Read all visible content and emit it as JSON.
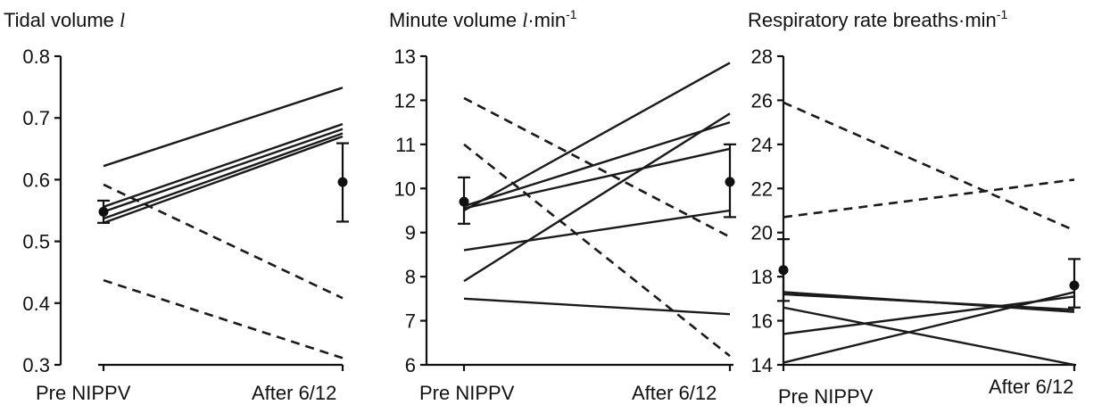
{
  "chart_data": [
    {
      "type": "line",
      "title": "Tidal volume",
      "title_unit": "l",
      "title_sup": "",
      "categories": [
        "Pre NIPPV",
        "After 6/12"
      ],
      "yticks": [
        "0.3",
        "0.4",
        "0.5",
        "0.6",
        "0.7",
        "0.8"
      ],
      "ylim": [
        0.3,
        0.8
      ],
      "series": [
        {
          "style": "solid",
          "values": [
            0.622,
            0.749
          ]
        },
        {
          "style": "solid",
          "values": [
            0.556,
            0.69
          ]
        },
        {
          "style": "solid",
          "values": [
            0.548,
            0.682
          ]
        },
        {
          "style": "solid",
          "values": [
            0.537,
            0.675
          ]
        },
        {
          "style": "solid",
          "values": [
            0.53,
            0.67
          ]
        },
        {
          "style": "dashed",
          "values": [
            0.592,
            0.408
          ]
        },
        {
          "style": "dashed",
          "values": [
            0.437,
            0.311
          ]
        }
      ],
      "mean_sd": [
        {
          "mean": 0.548,
          "low": 0.53,
          "high": 0.566
        },
        {
          "mean": 0.596,
          "low": 0.532,
          "high": 0.659
        }
      ]
    },
    {
      "type": "line",
      "title": "Minute volume",
      "title_unit": "l",
      "title_sup": "-1",
      "title_unit_suffix": "·min",
      "categories": [
        "Pre NIPPV",
        "After 6/12"
      ],
      "yticks": [
        "6",
        "7",
        "8",
        "9",
        "10",
        "11",
        "12",
        "13"
      ],
      "ylim": [
        6,
        13
      ],
      "series": [
        {
          "style": "solid",
          "values": [
            9.5,
            12.85
          ]
        },
        {
          "style": "solid",
          "values": [
            9.6,
            11.5
          ]
        },
        {
          "style": "solid",
          "values": [
            9.55,
            10.9
          ]
        },
        {
          "style": "solid",
          "values": [
            7.9,
            11.7
          ]
        },
        {
          "style": "solid",
          "values": [
            8.6,
            9.5
          ]
        },
        {
          "style": "solid",
          "values": [
            7.5,
            7.15
          ]
        },
        {
          "style": "dashed",
          "values": [
            12.05,
            8.9
          ]
        },
        {
          "style": "dashed",
          "values": [
            11.0,
            6.2
          ]
        }
      ],
      "mean_sd": [
        {
          "mean": 9.7,
          "low": 9.2,
          "high": 10.25
        },
        {
          "mean": 10.15,
          "low": 9.35,
          "high": 11.0
        }
      ]
    },
    {
      "type": "line",
      "title": "Respiratory rate breaths",
      "title_unit": "",
      "title_sup": "-1",
      "title_unit_suffix": "·min",
      "categories": [
        "Pre NIPPV",
        "After 6/12"
      ],
      "yticks": [
        "14",
        "16",
        "18",
        "20",
        "22",
        "24",
        "26",
        "28"
      ],
      "ylim": [
        14,
        28
      ],
      "series": [
        {
          "style": "solid",
          "values": [
            17.3,
            16.4
          ]
        },
        {
          "style": "solid",
          "values": [
            17.2,
            16.5
          ]
        },
        {
          "style": "solid",
          "values": [
            16.6,
            14.0
          ]
        },
        {
          "style": "solid",
          "values": [
            15.4,
            17.1
          ]
        },
        {
          "style": "solid",
          "values": [
            14.1,
            17.3
          ]
        },
        {
          "style": "dashed",
          "values": [
            25.9,
            20.1
          ]
        },
        {
          "style": "dashed",
          "values": [
            20.7,
            22.4
          ]
        }
      ],
      "mean_sd": [
        {
          "mean": 18.3,
          "low": 16.9,
          "high": 19.7
        },
        {
          "mean": 17.6,
          "low": 16.6,
          "high": 18.8
        }
      ]
    }
  ]
}
